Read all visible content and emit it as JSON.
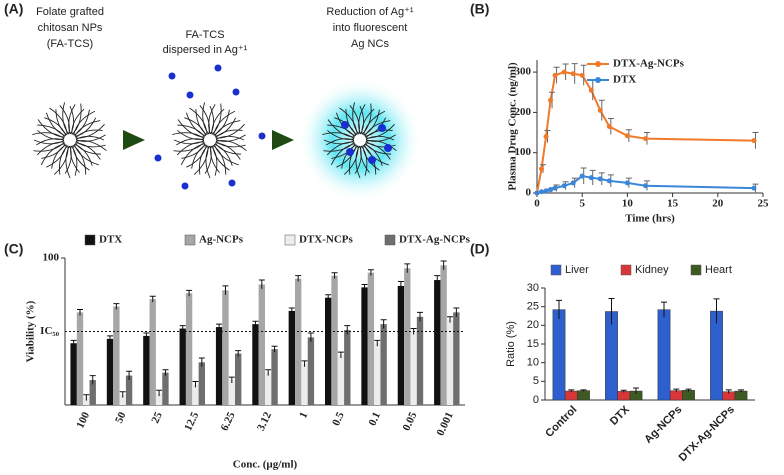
{
  "panel_labels": [
    "(A)",
    "(B)",
    "(C)",
    "(D)"
  ],
  "diagram": {
    "steps": [
      [
        "Folate grafted",
        "chitosan NPs",
        "(FA-TCS)"
      ],
      [
        "FA-TCS",
        "dispersed in Ag⁺¹"
      ],
      [
        "Reduction of Ag⁺¹",
        "into fluorescent",
        "Ag NCs"
      ]
    ]
  },
  "chart_data": [
    {
      "type": "line",
      "x_label": "Time (hrs)",
      "y_label": "Plasma Drug Conc. (ng/ml)",
      "x": [
        0,
        0.5,
        1,
        1.5,
        2,
        3,
        4,
        5,
        6,
        7,
        8,
        10,
        12,
        24
      ],
      "series": [
        {
          "name": "DTX-Ag-NCPs",
          "color": "#f07a2a",
          "values": [
            0,
            60,
            140,
            230,
            292,
            300,
            296,
            292,
            255,
            205,
            165,
            142,
            135,
            130
          ],
          "errors": [
            0,
            10,
            15,
            20,
            20,
            20,
            25,
            25,
            25,
            25,
            20,
            15,
            15,
            20
          ]
        },
        {
          "name": "DTX",
          "color": "#3a86d8",
          "values": [
            0,
            3,
            5,
            8,
            12,
            18,
            25,
            42,
            38,
            35,
            30,
            25,
            18,
            12
          ],
          "errors": [
            0,
            3,
            5,
            5,
            8,
            10,
            12,
            20,
            18,
            15,
            15,
            12,
            12,
            10
          ]
        }
      ],
      "xlim": [
        0,
        25
      ],
      "xticks": [
        0,
        5,
        10,
        15,
        20,
        25
      ],
      "ylim": [
        0,
        330
      ],
      "yticks": [
        0,
        100,
        200,
        300
      ],
      "legend": "upper-center"
    },
    {
      "type": "bar",
      "x_label": "Conc. (µg/ml)",
      "y_label": "Viability (%)",
      "categories": [
        "100",
        "50",
        "25",
        "12.5",
        "6.25",
        "3.12",
        "1",
        "0.5",
        "0.1",
        "0.05",
        "0.001"
      ],
      "series": [
        {
          "name": "DTX",
          "color": "#111111",
          "values": [
            42,
            45,
            47,
            52,
            53,
            55,
            64,
            73,
            80,
            81,
            85
          ],
          "errors": [
            2,
            2,
            2,
            2,
            2,
            2,
            2,
            2,
            2,
            3,
            3
          ]
        },
        {
          "name": "Ag-NCPs",
          "color": "#a6a6a6",
          "values": [
            63,
            67,
            72,
            76,
            78,
            82,
            86,
            88,
            90,
            93,
            95
          ],
          "errors": [
            2,
            2,
            2,
            2,
            3,
            3,
            2,
            2,
            2,
            3,
            3
          ]
        },
        {
          "name": "DTX-NCPs",
          "color": "#ececec",
          "values": [
            5,
            7,
            8,
            14,
            17,
            22,
            28,
            34,
            42,
            50,
            58
          ],
          "errors": [
            2,
            2,
            2,
            2,
            2,
            2,
            2,
            2,
            2,
            2,
            2
          ]
        },
        {
          "name": "DTX-Ag-NCPs",
          "color": "#6e6e6e",
          "values": [
            17,
            20,
            22,
            29,
            35,
            38,
            46,
            51,
            55,
            60,
            63
          ],
          "errors": [
            3,
            3,
            2,
            3,
            2,
            2,
            3,
            3,
            3,
            3,
            3
          ]
        }
      ],
      "ylim": [
        0,
        100
      ],
      "yticks": [
        100
      ],
      "reference_line": {
        "value": 50,
        "label": "IC₅₀"
      },
      "legend": "top"
    },
    {
      "type": "bar",
      "y_label": "Ratio (%)",
      "categories": [
        "Control",
        "DTX",
        "Ag-NCPs",
        "DTX-Ag-NCPs"
      ],
      "series": [
        {
          "name": "Liver",
          "color": "#2e5fcf",
          "values": [
            24.2,
            23.7,
            24.2,
            23.8
          ],
          "errors": [
            2.5,
            3.5,
            2.0,
            3.3
          ]
        },
        {
          "name": "Kidney",
          "color": "#d9363a",
          "values": [
            2.4,
            2.3,
            2.5,
            2.2
          ],
          "errors": [
            0.3,
            0.3,
            0.4,
            0.5
          ]
        },
        {
          "name": "Heart",
          "color": "#3d5a22",
          "values": [
            2.5,
            2.4,
            2.6,
            2.4
          ],
          "errors": [
            0.2,
            0.8,
            0.3,
            0.3
          ]
        }
      ],
      "ylim": [
        0,
        30
      ],
      "yticks": [
        0,
        5,
        10,
        15,
        20,
        25,
        30
      ],
      "legend": "top"
    }
  ]
}
